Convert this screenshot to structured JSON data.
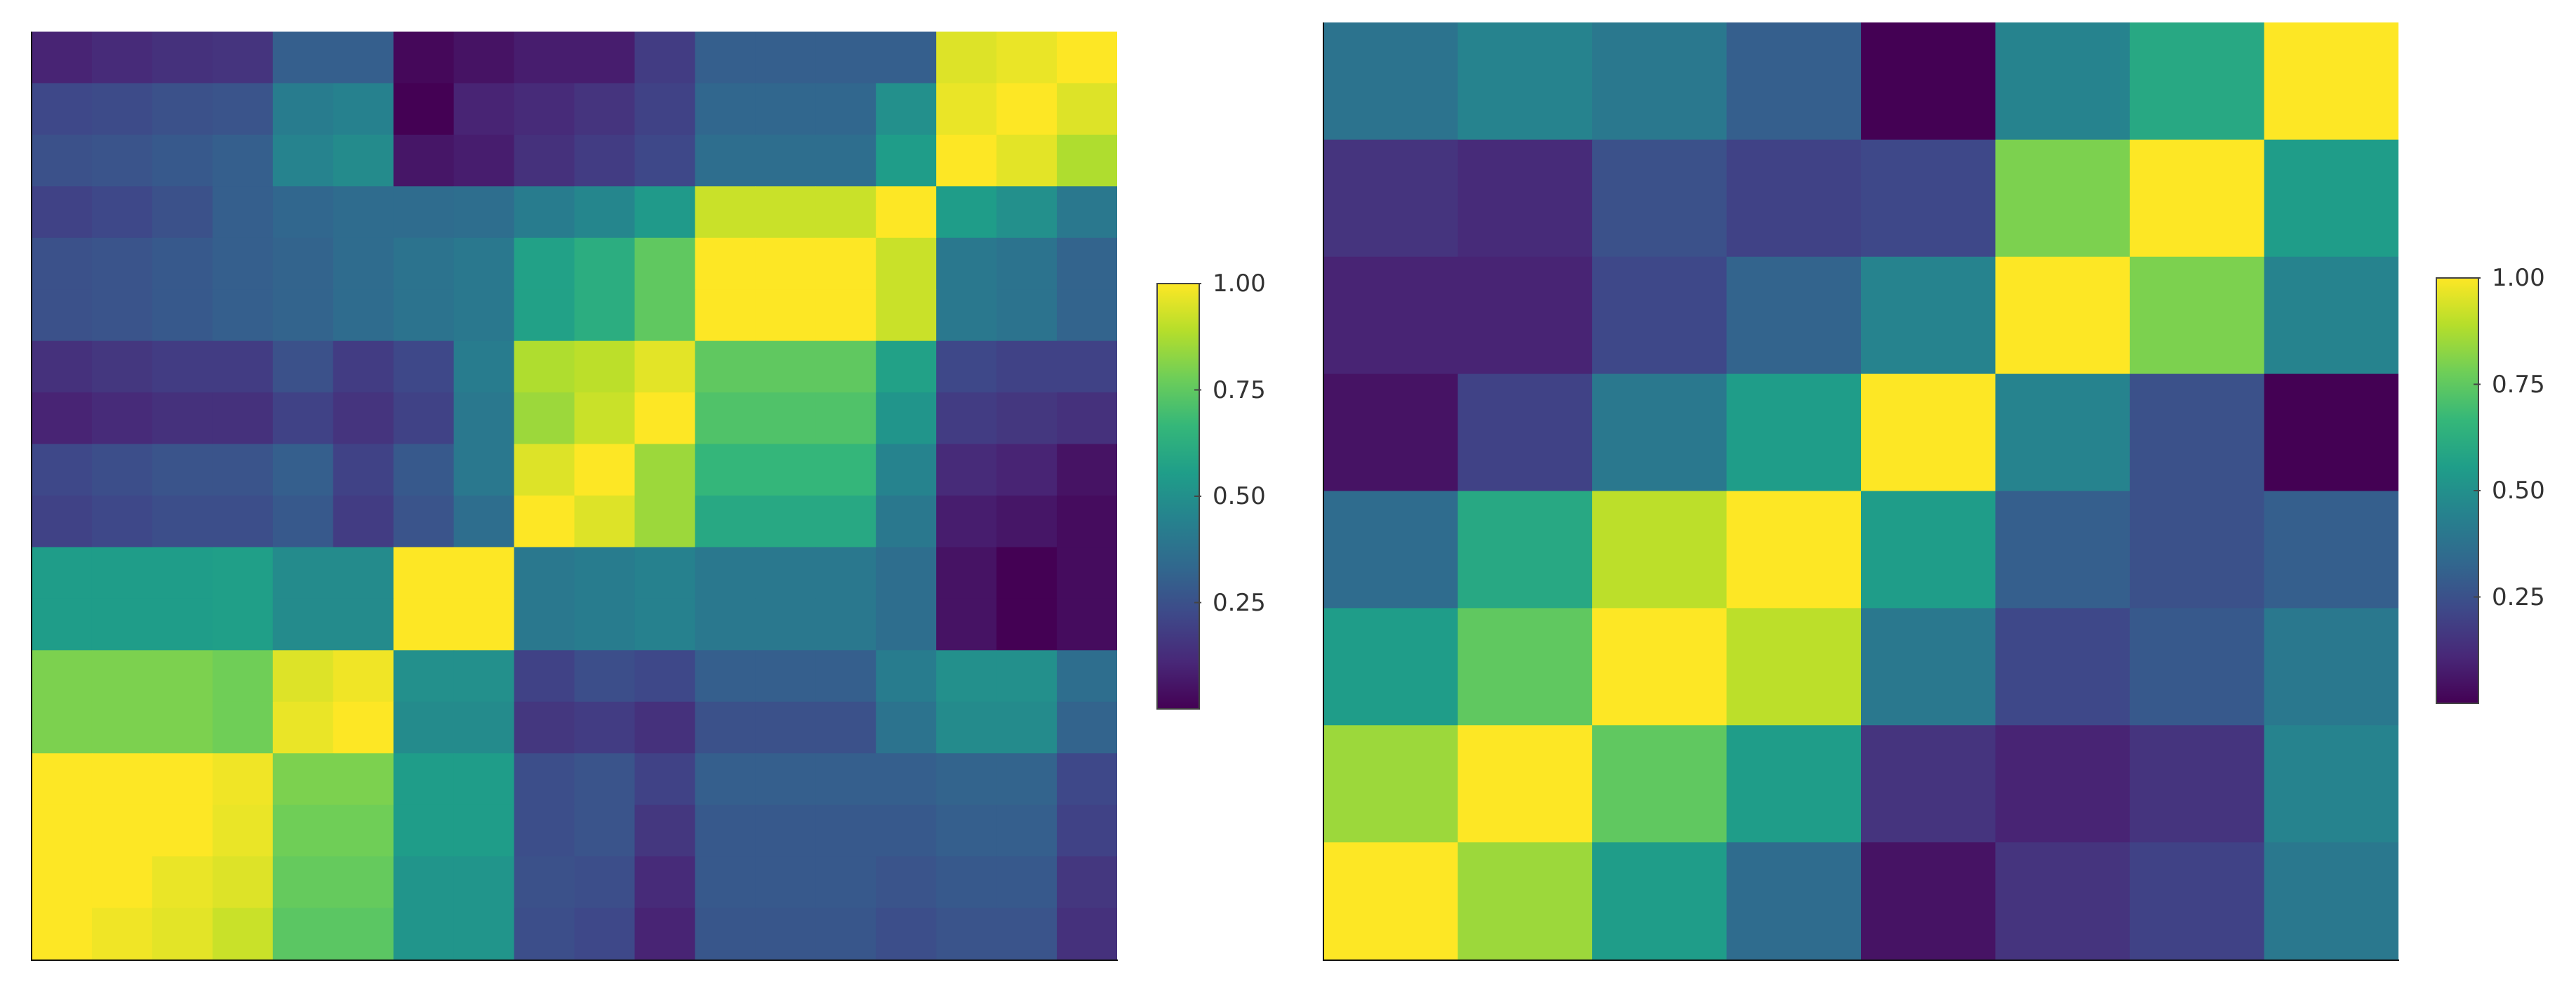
{
  "colorscale": [
    "#440154",
    "#482878",
    "#3e4989",
    "#31688e",
    "#26828e",
    "#1f9e89",
    "#35b779",
    "#6ece58",
    "#b5de2b",
    "#fde725"
  ],
  "colorbar": {
    "ticks": [
      0.25,
      0.5,
      0.75,
      1.0
    ],
    "tick_labels": [
      "0.25",
      "0.50",
      "0.75",
      "1.00"
    ]
  },
  "chart_data": [
    {
      "type": "heatmap",
      "title": "",
      "xlabel": "",
      "ylabel": "",
      "zlim": [
        0.0,
        1.0
      ],
      "colorbar_tick_labels": [
        "0.25",
        "0.50",
        "0.75",
        "1.00"
      ],
      "z": [
        [
          0.1,
          0.12,
          0.14,
          0.15,
          0.3,
          0.3,
          0.02,
          0.05,
          0.08,
          0.08,
          0.18,
          0.3,
          0.3,
          0.3,
          0.3,
          0.95,
          0.97,
          1.0
        ],
        [
          0.22,
          0.23,
          0.25,
          0.26,
          0.42,
          0.44,
          0.0,
          0.1,
          0.12,
          0.15,
          0.2,
          0.33,
          0.33,
          0.33,
          0.5,
          0.97,
          1.0,
          0.95
        ],
        [
          0.25,
          0.26,
          0.28,
          0.3,
          0.45,
          0.48,
          0.06,
          0.08,
          0.14,
          0.18,
          0.22,
          0.36,
          0.36,
          0.36,
          0.55,
          1.0,
          0.96,
          0.88
        ],
        [
          0.2,
          0.22,
          0.25,
          0.3,
          0.33,
          0.35,
          0.35,
          0.36,
          0.42,
          0.46,
          0.54,
          0.92,
          0.92,
          0.92,
          1.0,
          0.55,
          0.5,
          0.4
        ],
        [
          0.25,
          0.26,
          0.28,
          0.3,
          0.32,
          0.35,
          0.38,
          0.4,
          0.57,
          0.62,
          0.75,
          1.0,
          1.0,
          1.0,
          0.92,
          0.4,
          0.38,
          0.32
        ],
        [
          0.25,
          0.26,
          0.28,
          0.3,
          0.32,
          0.35,
          0.38,
          0.4,
          0.57,
          0.62,
          0.75,
          1.0,
          1.0,
          1.0,
          0.92,
          0.4,
          0.38,
          0.32
        ],
        [
          0.14,
          0.16,
          0.18,
          0.18,
          0.25,
          0.18,
          0.22,
          0.42,
          0.88,
          0.9,
          0.96,
          0.75,
          0.75,
          0.75,
          0.57,
          0.22,
          0.2,
          0.2
        ],
        [
          0.1,
          0.12,
          0.14,
          0.14,
          0.2,
          0.15,
          0.2,
          0.4,
          0.85,
          0.92,
          1.0,
          0.72,
          0.72,
          0.72,
          0.52,
          0.18,
          0.16,
          0.14
        ],
        [
          0.22,
          0.24,
          0.26,
          0.26,
          0.3,
          0.2,
          0.28,
          0.4,
          0.95,
          1.0,
          0.85,
          0.66,
          0.66,
          0.66,
          0.45,
          0.12,
          0.1,
          0.05
        ],
        [
          0.2,
          0.22,
          0.24,
          0.24,
          0.28,
          0.18,
          0.26,
          0.36,
          1.0,
          0.95,
          0.85,
          0.6,
          0.6,
          0.6,
          0.4,
          0.08,
          0.06,
          0.03
        ],
        [
          0.55,
          0.55,
          0.55,
          0.56,
          0.48,
          0.48,
          1.0,
          1.0,
          0.4,
          0.42,
          0.44,
          0.4,
          0.4,
          0.4,
          0.36,
          0.05,
          0.0,
          0.03
        ],
        [
          0.55,
          0.55,
          0.55,
          0.56,
          0.48,
          0.48,
          1.0,
          1.0,
          0.4,
          0.42,
          0.44,
          0.4,
          0.4,
          0.4,
          0.36,
          0.05,
          0.0,
          0.03
        ],
        [
          0.8,
          0.8,
          0.8,
          0.78,
          0.95,
          0.98,
          0.5,
          0.5,
          0.2,
          0.24,
          0.22,
          0.3,
          0.3,
          0.3,
          0.42,
          0.5,
          0.5,
          0.36
        ],
        [
          0.8,
          0.8,
          0.8,
          0.78,
          0.97,
          1.0,
          0.48,
          0.48,
          0.16,
          0.18,
          0.14,
          0.25,
          0.25,
          0.25,
          0.38,
          0.48,
          0.48,
          0.32
        ],
        [
          1.0,
          1.0,
          1.0,
          0.98,
          0.8,
          0.8,
          0.55,
          0.55,
          0.24,
          0.26,
          0.2,
          0.3,
          0.3,
          0.3,
          0.3,
          0.32,
          0.32,
          0.22
        ],
        [
          1.0,
          1.0,
          1.0,
          0.97,
          0.78,
          0.78,
          0.55,
          0.55,
          0.24,
          0.26,
          0.16,
          0.28,
          0.28,
          0.28,
          0.28,
          0.3,
          0.3,
          0.2
        ],
        [
          1.0,
          1.0,
          0.97,
          0.95,
          0.76,
          0.76,
          0.52,
          0.52,
          0.25,
          0.24,
          0.12,
          0.28,
          0.28,
          0.28,
          0.26,
          0.28,
          0.28,
          0.16
        ],
        [
          1.0,
          0.98,
          0.96,
          0.92,
          0.74,
          0.74,
          0.52,
          0.52,
          0.24,
          0.22,
          0.1,
          0.27,
          0.27,
          0.27,
          0.24,
          0.26,
          0.26,
          0.14
        ]
      ]
    },
    {
      "type": "heatmap",
      "title": "",
      "xlabel": "",
      "ylabel": "",
      "zlim": [
        0.0,
        1.0
      ],
      "colorbar_tick_labels": [
        "0.25",
        "0.50",
        "0.75",
        "1.00"
      ],
      "z": [
        [
          0.38,
          0.45,
          0.4,
          0.3,
          0.0,
          0.45,
          0.6,
          1.0
        ],
        [
          0.15,
          0.12,
          0.25,
          0.2,
          0.22,
          0.8,
          1.0,
          0.55
        ],
        [
          0.1,
          0.1,
          0.22,
          0.32,
          0.45,
          1.0,
          0.8,
          0.45
        ],
        [
          0.05,
          0.2,
          0.4,
          0.55,
          1.0,
          0.45,
          0.25,
          0.0
        ],
        [
          0.35,
          0.6,
          0.9,
          1.0,
          0.55,
          0.3,
          0.25,
          0.3
        ],
        [
          0.55,
          0.75,
          1.0,
          0.9,
          0.4,
          0.22,
          0.28,
          0.4
        ],
        [
          0.85,
          1.0,
          0.75,
          0.55,
          0.15,
          0.1,
          0.15,
          0.45
        ],
        [
          1.0,
          0.85,
          0.55,
          0.35,
          0.05,
          0.15,
          0.2,
          0.4
        ]
      ]
    }
  ]
}
